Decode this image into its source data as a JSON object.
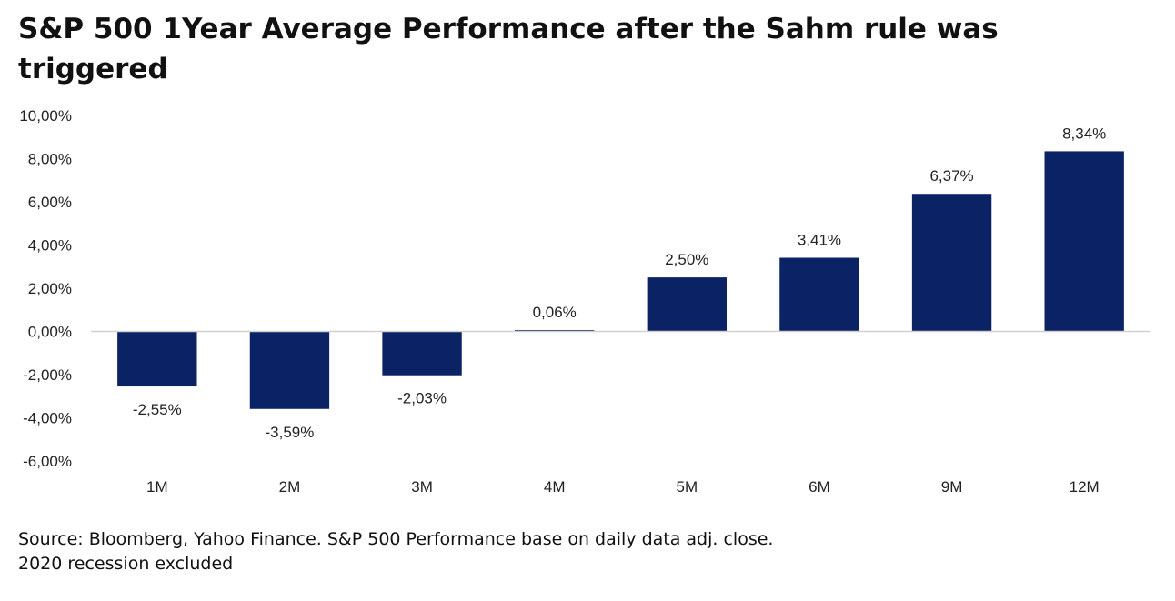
{
  "chart_data": {
    "type": "bar",
    "title": "S&P 500 1Year Average Performance after the Sahm rule was triggered",
    "categories": [
      "1M",
      "2M",
      "3M",
      "4M",
      "5M",
      "6M",
      "9M",
      "12M"
    ],
    "values": [
      -2.55,
      -3.59,
      -2.03,
      0.06,
      2.5,
      3.41,
      6.37,
      8.34
    ],
    "data_labels": [
      "-2,55%",
      "-3,59%",
      "-2,03%",
      "0,06%",
      "2,50%",
      "3,41%",
      "6,37%",
      "8,34%"
    ],
    "ylim": [
      -6,
      10
    ],
    "yticks": [
      10,
      8,
      6,
      4,
      2,
      0,
      -2,
      -4,
      -6
    ],
    "ytick_labels": [
      "10,00%",
      "8,00%",
      "6,00%",
      "4,00%",
      "2,00%",
      "0,00%",
      "-2,00%",
      "-4,00%",
      "-6,00%"
    ],
    "xlabel": "",
    "ylabel": "",
    "grid": false,
    "bar_color": "#0b2265"
  },
  "source": {
    "line1": "Source: Bloomberg, Yahoo Finance. S&P 500 Performance base on daily data adj. close.",
    "line2": "2020 recession excluded"
  }
}
